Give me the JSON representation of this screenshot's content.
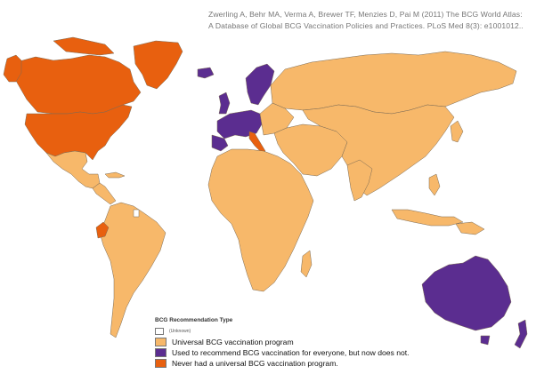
{
  "citation": {
    "line1": "Zwerling A, Behr MA, Verma A, Brewer TF, Menzies D, Pai M (2011) The BCG World Atlas:",
    "line2": "A Database of Global BCG Vaccination Policies and Practices. PLoS Med 8(3): e1001012.."
  },
  "legend": {
    "title": "BCG Recommendation Type",
    "items": [
      {
        "label": "(Unknown)",
        "color": "#ffffff"
      },
      {
        "label": "Universal BCG vaccination program",
        "color": "#f7b86a"
      },
      {
        "label": "Used to recommend BCG vaccination for everyone, but now does not.",
        "color": "#5b2d90"
      },
      {
        "label": "Never had a universal BCG vaccination program.",
        "color": "#e8600f"
      }
    ]
  },
  "map": {
    "regions": [
      {
        "name": "Canada",
        "category": "never"
      },
      {
        "name": "United States",
        "category": "never"
      },
      {
        "name": "Greenland",
        "category": "never"
      },
      {
        "name": "Mexico",
        "category": "universal"
      },
      {
        "name": "Central America",
        "category": "universal"
      },
      {
        "name": "Ecuador",
        "category": "never"
      },
      {
        "name": "South America",
        "category": "universal"
      },
      {
        "name": "Western Europe",
        "category": "past"
      },
      {
        "name": "Italy",
        "category": "never"
      },
      {
        "name": "Scandinavia",
        "category": "past"
      },
      {
        "name": "Russia",
        "category": "universal"
      },
      {
        "name": "Africa",
        "category": "universal"
      },
      {
        "name": "Middle East",
        "category": "universal"
      },
      {
        "name": "Asia",
        "category": "universal"
      },
      {
        "name": "Australia",
        "category": "past"
      },
      {
        "name": "New Zealand",
        "category": "past"
      }
    ]
  }
}
